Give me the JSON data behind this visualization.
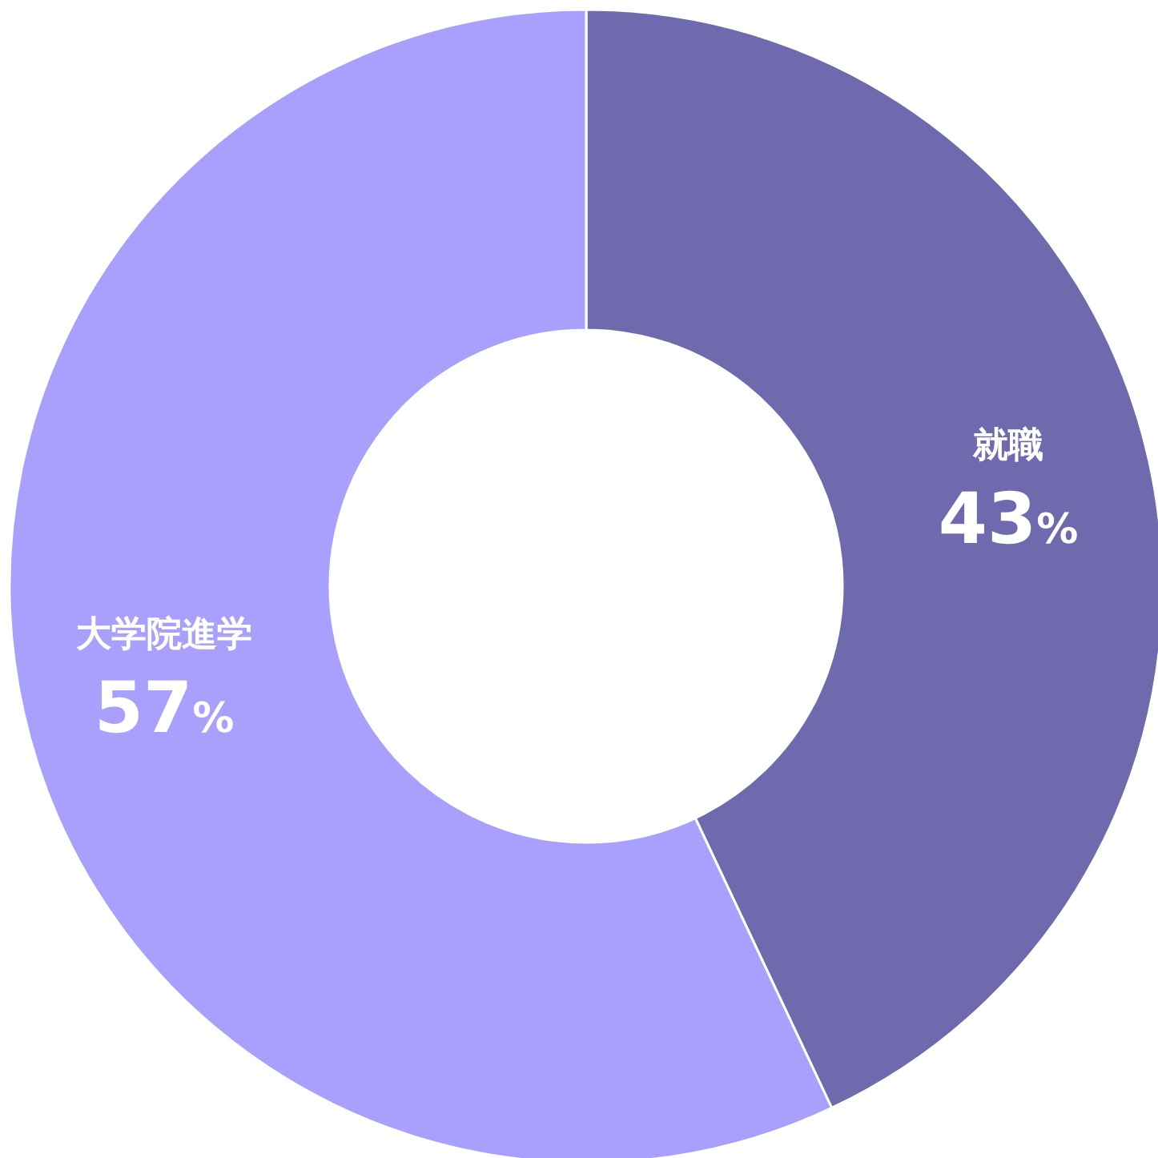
{
  "chart_data": {
    "type": "donut",
    "categories": [
      "就職",
      "大学院進学"
    ],
    "values": [
      43,
      57
    ],
    "colors": [
      "#6e6aad",
      "#a9a0fd"
    ],
    "value_labels": [
      "43%",
      "57%"
    ]
  }
}
